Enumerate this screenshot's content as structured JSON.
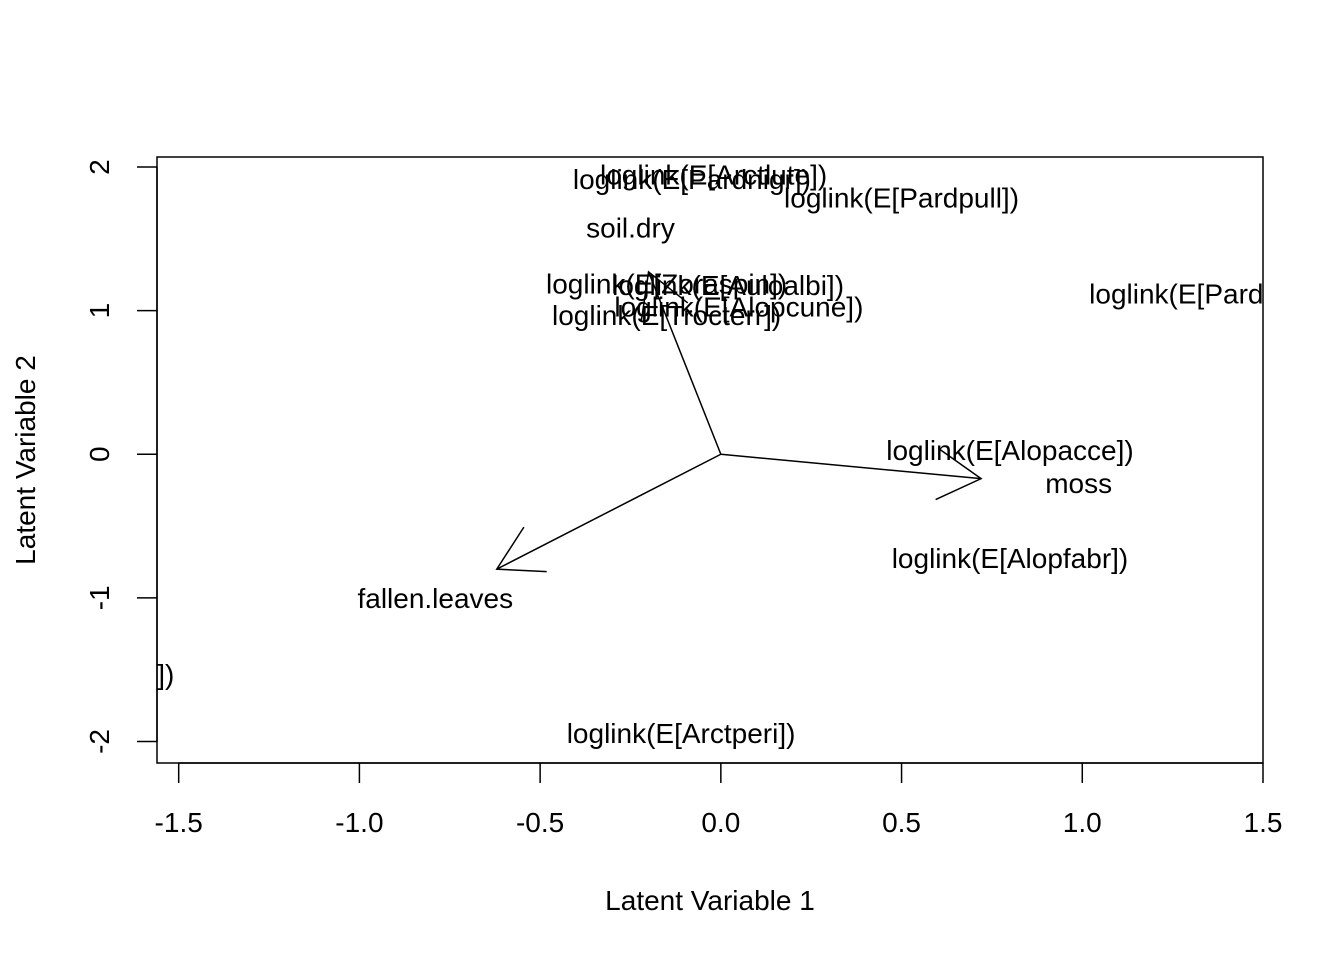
{
  "chart_data": {
    "type": "scatter",
    "title": "",
    "xlabel": "Latent Variable 1",
    "ylabel": "Latent Variable 2",
    "xlim": [
      -1.56,
      1.5
    ],
    "ylim": [
      -2.15,
      2.07
    ],
    "grid": false,
    "xticks": [
      {
        "v": -1.5,
        "label": "-1.5"
      },
      {
        "v": -1.0,
        "label": "-1.0"
      },
      {
        "v": -0.5,
        "label": "-0.5"
      },
      {
        "v": 0.0,
        "label": "0.0"
      },
      {
        "v": 0.5,
        "label": "0.5"
      },
      {
        "v": 1.0,
        "label": "1.0"
      },
      {
        "v": 1.5,
        "label": "1.5"
      }
    ],
    "yticks": [
      {
        "v": -2,
        "label": "-2"
      },
      {
        "v": -1,
        "label": "-1"
      },
      {
        "v": 0,
        "label": "0"
      },
      {
        "v": 1,
        "label": "1"
      },
      {
        "v": 2,
        "label": "2"
      }
    ],
    "species_labels": [
      {
        "label": "loglink(E[Arctlute])",
        "x": -0.02,
        "y": 1.93
      },
      {
        "label": "loglink(E[Pardnigr])",
        "x": -0.08,
        "y": 1.9
      },
      {
        "label": "loglink(E[Pardpull])",
        "x": 0.5,
        "y": 1.77
      },
      {
        "label": "loglink(E[Zoraspin])",
        "x": -0.15,
        "y": 1.17
      },
      {
        "label": "loglink(E[Auloalbi])",
        "x": 0.02,
        "y": 1.16
      },
      {
        "label": "loglink(E[Alopcune])",
        "x": 0.05,
        "y": 1.01
      },
      {
        "label": "loglink(E[Trocterr])",
        "x": -0.15,
        "y": 0.95
      },
      {
        "label": "loglink(E[Pardmont])",
        "x": 1.37,
        "y": 1.1
      },
      {
        "label": "loglink(E[Alopacce])",
        "x": 0.8,
        "y": 0.01
      },
      {
        "label": "loglink(E[Alopfabr])",
        "x": 0.8,
        "y": -0.74
      },
      {
        "label": "loglink(E[Pardlugu])",
        "x": -1.85,
        "y": -1.55
      },
      {
        "label": "loglink(E[Arctperi])",
        "x": -0.11,
        "y": -1.96
      }
    ],
    "env_arrows": [
      {
        "label": "soil.dry",
        "x": -0.2,
        "y": 1.27,
        "label_x": -0.25,
        "label_y": 1.56
      },
      {
        "label": "moss",
        "x": 0.72,
        "y": -0.17,
        "label_x": 0.99,
        "label_y": -0.22
      },
      {
        "label": "fallen.leaves",
        "x": -0.62,
        "y": -0.8,
        "label_x": -0.79,
        "label_y": -1.02
      }
    ]
  }
}
